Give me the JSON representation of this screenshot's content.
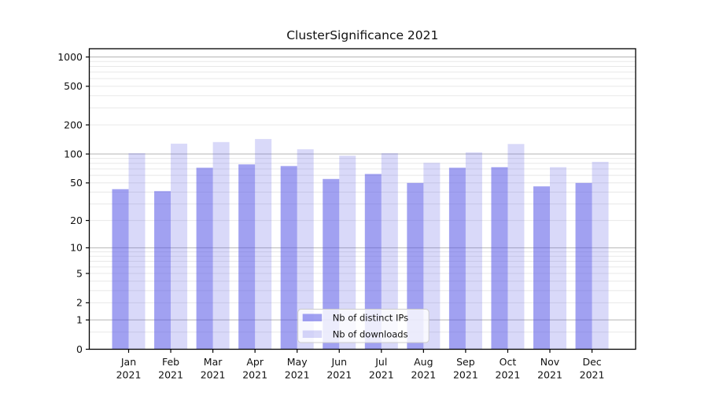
{
  "chart_data": {
    "type": "bar",
    "title": "ClusterSignificance 2021",
    "year_label": "2021",
    "categories": [
      "Jan",
      "Feb",
      "Mar",
      "Apr",
      "May",
      "Jun",
      "Jul",
      "Aug",
      "Sep",
      "Oct",
      "Nov",
      "Dec"
    ],
    "series": [
      {
        "name": "Nb of distinct IPs",
        "color": "rgba(84,84,229,0.55)",
        "values": [
          43,
          41,
          72,
          78,
          75,
          55,
          62,
          50,
          72,
          73,
          46,
          50
        ]
      },
      {
        "name": "Nb of downloads",
        "color": "rgba(84,84,229,0.22)",
        "values": [
          102,
          128,
          133,
          143,
          112,
          96,
          102,
          81,
          104,
          127,
          73,
          83
        ]
      }
    ],
    "y_axis": {
      "scale": "log1p",
      "range": [
        0,
        1000
      ],
      "ticks": [
        {
          "value": 0,
          "label": "0",
          "major": false
        },
        {
          "value": 1,
          "label": "1",
          "major": true
        },
        {
          "value": 2,
          "label": "2",
          "major": false
        },
        {
          "value": 5,
          "label": "5",
          "major": false
        },
        {
          "value": 10,
          "label": "10",
          "major": true
        },
        {
          "value": 20,
          "label": "20",
          "major": false
        },
        {
          "value": 50,
          "label": "50",
          "major": false
        },
        {
          "value": 100,
          "label": "100",
          "major": true
        },
        {
          "value": 200,
          "label": "200",
          "major": false
        },
        {
          "value": 500,
          "label": "500",
          "major": false
        },
        {
          "value": 1000,
          "label": "1000",
          "major": true
        }
      ]
    },
    "xlabel": "",
    "ylabel": "",
    "grid": true,
    "legend_position": "lower center"
  },
  "colors": {
    "background": "#ffffff",
    "spine": "#000000",
    "grid_major": "#b4b4b4",
    "grid_minor": "#e8e8e8",
    "legend_border": "#cccccc",
    "legend_fill": "rgba(255,255,255,0.8)",
    "text": "#111111"
  }
}
